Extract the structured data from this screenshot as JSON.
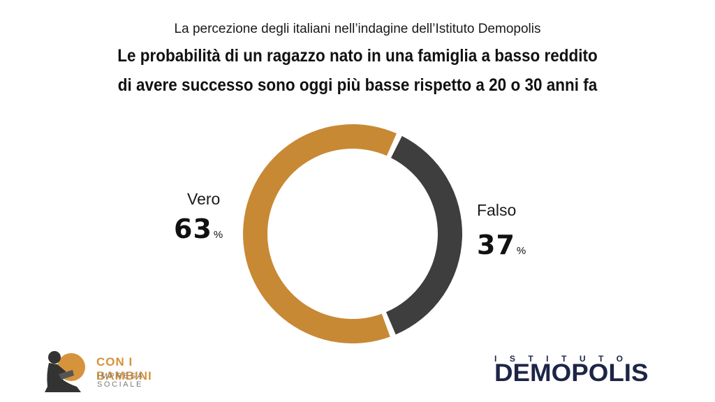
{
  "header": {
    "subtitle": "La percezione degli italiani nell’indagine dell’Istituto Demopolis",
    "title_line1": "Le probabilità di un ragazzo nato in una famiglia a basso reddito",
    "title_line2": "di avere successo sono oggi più basse rispetto a 20 o 30 anni fa"
  },
  "chart_data": {
    "type": "pie",
    "title": "Le probabilità di un ragazzo nato in una famiglia a basso reddito di avere successo sono oggi più basse rispetto a 20 o 30 anni fa",
    "slices": [
      {
        "label": "Vero",
        "value": 63,
        "unit": "%",
        "color": "#c88934"
      },
      {
        "label": "Falso",
        "value": 37,
        "unit": "%",
        "color": "#3e3e3e"
      }
    ]
  },
  "labels": {
    "vero": {
      "name": "Vero",
      "value": "63",
      "unit": "%"
    },
    "falso": {
      "name": "Falso",
      "value": "37",
      "unit": "%"
    }
  },
  "logos": {
    "left_title": "CON I BAMBINI",
    "left_subtitle": "IMPRESA SOCIALE",
    "right_top": "ISTITUTO",
    "right_main": "DEMOPOLIS"
  },
  "colors": {
    "accent_orange": "#c88934",
    "dark_gray": "#3e3e3e",
    "brand_navy": "#1d2547",
    "logo_orange": "#d5933b"
  }
}
